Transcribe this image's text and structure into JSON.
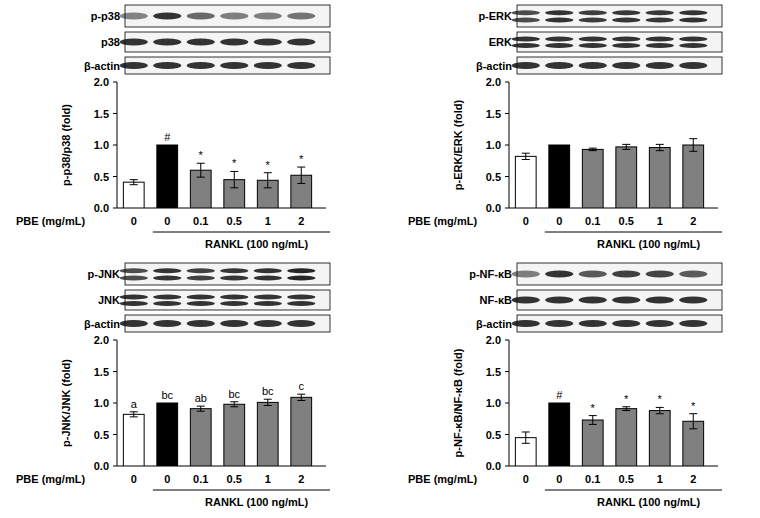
{
  "chart_data": [
    {
      "type": "bar",
      "blot_labels": [
        "p-p38",
        "p38",
        "β-actin"
      ],
      "y_label": "p-p38/p38 (fold)",
      "x_label": "PBE (mg/mL)",
      "annotation": "RANKL (100 ng/mL)",
      "categories": [
        "0",
        "0",
        "0.1",
        "0.5",
        "1",
        "2"
      ],
      "values": [
        0.41,
        1.0,
        0.6,
        0.45,
        0.44,
        0.52
      ],
      "errors": [
        0.04,
        0,
        0.11,
        0.13,
        0.12,
        0.13
      ],
      "significance": [
        null,
        "#",
        "*",
        "*",
        "*",
        "*"
      ],
      "colors": [
        "#ffffff",
        "#000000",
        "#808080",
        "#808080",
        "#808080",
        "#808080"
      ],
      "ylim": [
        0,
        2
      ],
      "yticks": [
        {
          "value": 0,
          "label": "0.0"
        },
        {
          "value": 0.5,
          "label": "0.5"
        },
        {
          "value": 1,
          "label": "1.0"
        },
        {
          "value": 1.5,
          "label": "1.5"
        },
        {
          "value": 2,
          "label": "2.0"
        }
      ],
      "grid": false
    },
    {
      "type": "bar",
      "blot_labels": [
        "p-ERK",
        "ERK",
        "β-actin"
      ],
      "y_label": "p-ERK/ERK (fold)",
      "x_label": "PBE (mg/mL)",
      "annotation": "RANKL (100 ng/mL)",
      "categories": [
        "0",
        "0",
        "0.1",
        "0.5",
        "1",
        "2"
      ],
      "values": [
        0.82,
        1.0,
        0.93,
        0.97,
        0.96,
        1.0
      ],
      "errors": [
        0.05,
        0,
        0.02,
        0.04,
        0.05,
        0.1
      ],
      "colors": [
        "#ffffff",
        "#000000",
        "#808080",
        "#808080",
        "#808080",
        "#808080"
      ],
      "ylim": [
        0,
        2
      ],
      "yticks": [
        {
          "value": 0,
          "label": "0.0"
        },
        {
          "value": 0.5,
          "label": "0.5"
        },
        {
          "value": 1,
          "label": "1.0"
        },
        {
          "value": 1.5,
          "label": "1.5"
        },
        {
          "value": 2,
          "label": "2.0"
        }
      ],
      "grid": false
    },
    {
      "type": "bar",
      "blot_labels": [
        "p-JNK",
        "JNK",
        "β-actin"
      ],
      "y_label": "p-JNK/JNK (fold)",
      "x_label": "PBE (mg/mL)",
      "annotation": "RANKL (100 ng/mL)",
      "categories": [
        "0",
        "0",
        "0.1",
        "0.5",
        "1",
        "2"
      ],
      "values": [
        0.82,
        1.0,
        0.91,
        0.98,
        1.01,
        1.09
      ],
      "errors": [
        0.04,
        0,
        0.04,
        0.04,
        0.05,
        0.05
      ],
      "significance": [
        "a",
        "bc",
        "ab",
        "bc",
        "bc",
        "c"
      ],
      "colors": [
        "#ffffff",
        "#000000",
        "#808080",
        "#808080",
        "#808080",
        "#808080"
      ],
      "ylim": [
        0,
        2
      ],
      "yticks": [
        {
          "value": 0,
          "label": "0.0"
        },
        {
          "value": 0.5,
          "label": "0.5"
        },
        {
          "value": 1,
          "label": "1.0"
        },
        {
          "value": 1.5,
          "label": "1.5"
        },
        {
          "value": 2,
          "label": "2.0"
        }
      ],
      "grid": false
    },
    {
      "type": "bar",
      "blot_labels": [
        "p-NF-κB",
        "NF-κB",
        "β-actin"
      ],
      "y_label": "p-NF-κB/NF-κB (fold)",
      "x_label": "PBE (mg/mL)",
      "annotation": "RANKL (100 ng/mL)",
      "categories": [
        "0",
        "0",
        "0.1",
        "0.5",
        "1",
        "2"
      ],
      "values": [
        0.45,
        1.0,
        0.73,
        0.91,
        0.88,
        0.71
      ],
      "errors": [
        0.09,
        0,
        0.07,
        0.03,
        0.05,
        0.12
      ],
      "significance": [
        null,
        "#",
        "*",
        "*",
        "*",
        "*"
      ],
      "colors": [
        "#ffffff",
        "#000000",
        "#808080",
        "#808080",
        "#808080",
        "#808080"
      ],
      "ylim": [
        0,
        2
      ],
      "yticks": [
        {
          "value": 0,
          "label": "0.0"
        },
        {
          "value": 0.5,
          "label": "0.5"
        },
        {
          "value": 1,
          "label": "1.0"
        },
        {
          "value": 1.5,
          "label": "1.5"
        },
        {
          "value": 2,
          "label": "2.0"
        }
      ],
      "grid": false
    }
  ]
}
